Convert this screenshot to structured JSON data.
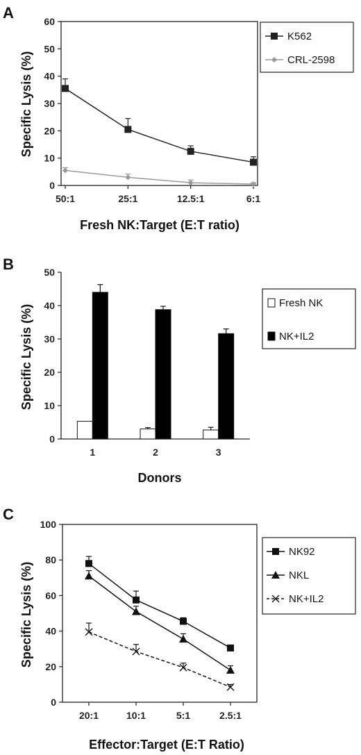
{
  "chart_data": [
    {
      "panel": "A",
      "type": "line",
      "categories": [
        "50:1",
        "25:1",
        "12.5:1",
        "6:1"
      ],
      "xlabel": "Fresh NK:Target (E:T ratio)",
      "ylabel": "Specific Lysis (%)",
      "ylim": [
        0,
        60
      ],
      "yticks": [
        0,
        10,
        20,
        30,
        40,
        50,
        60
      ],
      "grid": false,
      "legend_position": "top-right",
      "series": [
        {
          "name": "K562",
          "values": [
            35.5,
            20.5,
            12.5,
            8.5
          ],
          "errors": [
            3.5,
            4,
            2,
            2
          ],
          "color": "#222222",
          "marker": "square"
        },
        {
          "name": "CRL-2598",
          "values": [
            5.5,
            3,
            1,
            0.5
          ],
          "errors": [
            1,
            1.2,
            1,
            0.5
          ],
          "color": "#999999",
          "marker": "diamond"
        }
      ]
    },
    {
      "panel": "B",
      "type": "bar",
      "categories": [
        "1",
        "2",
        "3"
      ],
      "xlabel": "Donors",
      "ylabel": "Specific Lysis (%)",
      "ylim": [
        0,
        50
      ],
      "yticks": [
        0,
        10,
        20,
        30,
        40,
        50
      ],
      "grid": false,
      "legend_position": "right",
      "series": [
        {
          "name": "Fresh NK",
          "values": [
            5.3,
            3,
            2.7
          ],
          "errors": [
            0,
            0.4,
            0.8
          ],
          "color": "#ffffff"
        },
        {
          "name": "NK+IL2",
          "values": [
            44,
            38.8,
            31.6
          ],
          "errors": [
            2.3,
            1,
            1.4
          ],
          "color": "#000000"
        }
      ]
    },
    {
      "panel": "C",
      "type": "line",
      "categories": [
        "20:1",
        "10:1",
        "5:1",
        "2.5:1"
      ],
      "xlabel": "Effector:Target (E:T Ratio)",
      "ylabel": "Specific Lysis (%)",
      "ylim": [
        0,
        100
      ],
      "yticks": [
        0,
        20,
        40,
        60,
        80,
        100
      ],
      "grid": false,
      "legend_position": "right",
      "series": [
        {
          "name": "NK92",
          "values": [
            78,
            57.5,
            45.5,
            30.5
          ],
          "errors": [
            4,
            5,
            2,
            1
          ],
          "color": "#111111",
          "marker": "square"
        },
        {
          "name": "NKL",
          "values": [
            71,
            51,
            35.5,
            18
          ],
          "errors": [
            3,
            3,
            3,
            2.5
          ],
          "color": "#111111",
          "marker": "triangle"
        },
        {
          "name": "NK+IL2",
          "values": [
            39.5,
            28.5,
            19.5,
            8.5
          ],
          "errors": [
            5,
            4,
            2.5,
            1.5
          ],
          "color": "#111111",
          "marker": "x",
          "dashed": true
        }
      ]
    }
  ]
}
